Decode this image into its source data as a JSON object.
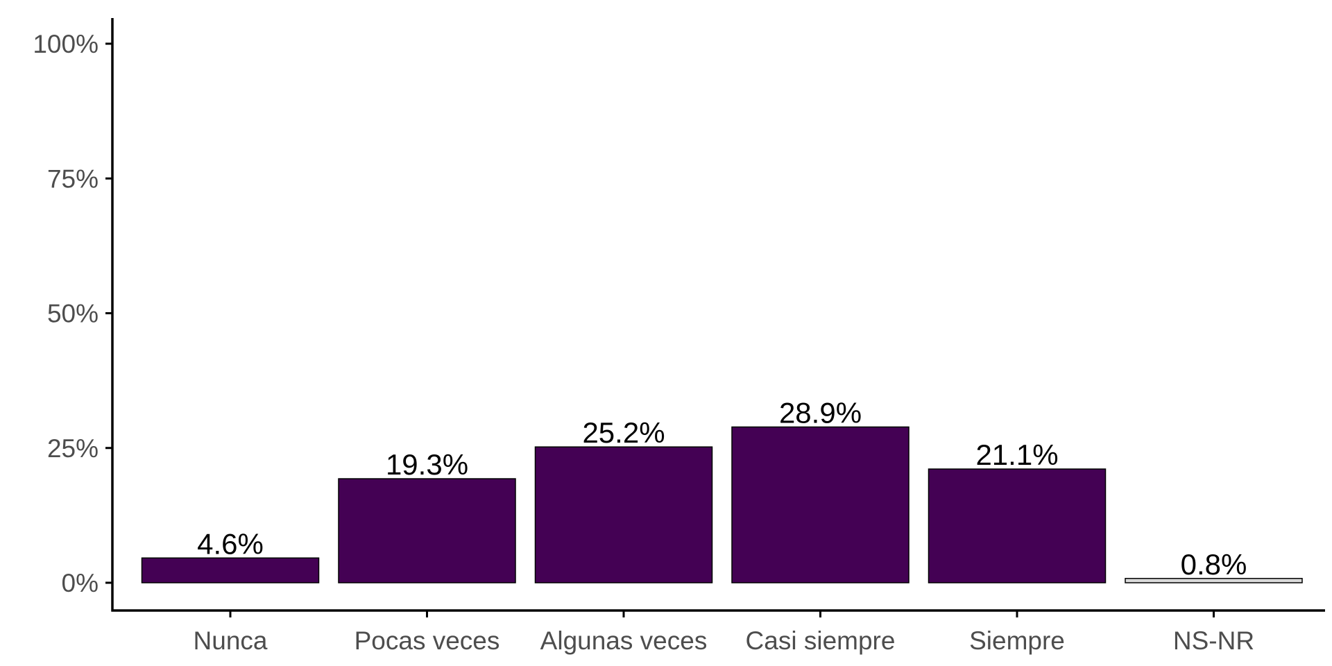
{
  "chart_data": {
    "type": "bar",
    "categories": [
      "Nunca",
      "Pocas veces",
      "Algunas veces",
      "Casi siempre",
      "Siempre",
      "NS-NR"
    ],
    "values": [
      4.6,
      19.3,
      25.2,
      28.9,
      21.1,
      0.8
    ],
    "value_labels": [
      "4.6%",
      "19.3%",
      "25.2%",
      "28.9%",
      "21.1%",
      "0.8%"
    ],
    "bar_colors": [
      "#440154",
      "#440154",
      "#440154",
      "#440154",
      "#440154",
      "#d9d9d9"
    ],
    "title": "",
    "xlabel": "",
    "ylabel": "",
    "ylim": [
      0,
      100
    ],
    "y_ticks": [
      0,
      25,
      50,
      75,
      100
    ],
    "y_tick_labels": [
      "0%",
      "25%",
      "50%",
      "75%",
      "100%"
    ],
    "grid": false,
    "legend": "none"
  }
}
